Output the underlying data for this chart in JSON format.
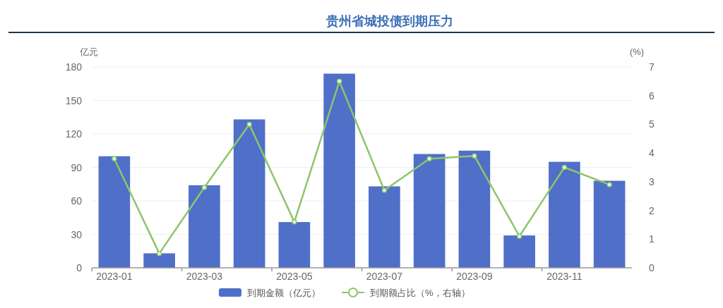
{
  "chart_data": {
    "type": "bar",
    "title": "贵州省城投债到期压力",
    "ylabel": "亿元",
    "y2label": "(%)",
    "categories": [
      "2023-01",
      null,
      "2023-03",
      null,
      "2023-05",
      null,
      "2023-07",
      null,
      "2023-09",
      null,
      "2023-11",
      null
    ],
    "series": [
      {
        "name": "到期金额（亿元）",
        "color": "#4f6fc8",
        "values": [
          100,
          13,
          74,
          133,
          41,
          174,
          73,
          102,
          105,
          29,
          95,
          78
        ]
      },
      {
        "name": "到期额占比（%，右轴）",
        "type": "line",
        "axis": "y2",
        "color": "#8dc56c",
        "values": [
          3.8,
          0.5,
          2.8,
          5.0,
          1.6,
          6.5,
          2.7,
          3.8,
          3.9,
          1.1,
          3.5,
          2.9
        ]
      }
    ],
    "ylim": [
      0,
      180
    ],
    "yticks": [
      0,
      30,
      60,
      90,
      120,
      150,
      180
    ],
    "y2lim": [
      0,
      7
    ],
    "y2ticks": [
      0,
      1,
      2,
      3,
      4,
      5,
      6,
      7
    ],
    "grid": "y",
    "legend": "bottom",
    "marker": "circle"
  }
}
